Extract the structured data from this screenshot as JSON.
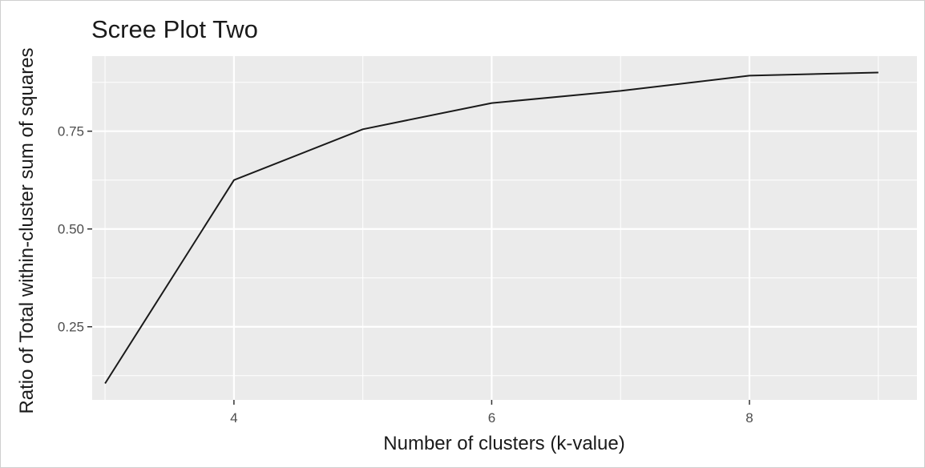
{
  "chart_data": {
    "type": "line",
    "title": "Scree Plot Two",
    "xlabel": "Number of clusters (k-value)",
    "ylabel": "Ratio of Total within-cluster sum of squares",
    "x": [
      3,
      4,
      5,
      6,
      7,
      8,
      9
    ],
    "series": [
      {
        "values": [
          0.105,
          0.625,
          0.755,
          0.822,
          0.853,
          0.892,
          0.9
        ]
      }
    ],
    "xlim": [
      2.9,
      9.3
    ],
    "ylim": [
      0.063,
      0.942
    ],
    "x_ticks": [
      4,
      6,
      8
    ],
    "x_tick_labels": [
      "4",
      "6",
      "8"
    ],
    "y_ticks": [
      0.25,
      0.5,
      0.75
    ],
    "y_tick_labels": [
      "0.25",
      "0.50",
      "0.75"
    ],
    "x_minor": [
      3,
      5,
      7,
      9
    ],
    "y_minor": [
      0.125,
      0.375,
      0.625,
      0.875
    ],
    "grid": true,
    "panel_color": "#ebebeb",
    "grid_color": "#ffffff",
    "line_color": "#1a1a1a"
  }
}
